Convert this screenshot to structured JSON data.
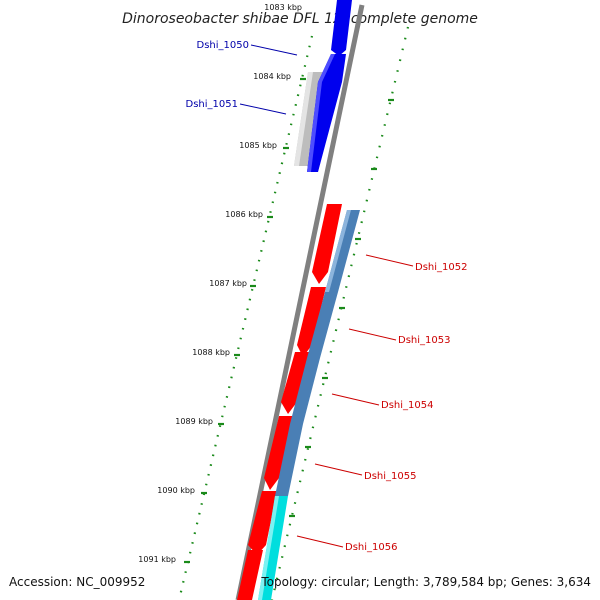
{
  "title": "Dinoroseobacter shibae DFL 12, complete genome",
  "accession": "Accession: NC_009952",
  "summary": "Topology: circular; Length: 3,789,584 bp; Genes: 3,634",
  "kbp_labels": [
    "1083 kbp",
    "1084 kbp",
    "1085 kbp",
    "1086 kbp",
    "1087 kbp",
    "1088 kbp",
    "1089 kbp",
    "1090 kbp",
    "1091 kbp"
  ],
  "gene_labels": [
    "Dshi_1050",
    "Dshi_1051",
    "Dshi_1052",
    "Dshi_1053",
    "Dshi_1054",
    "Dshi_1055",
    "Dshi_1056"
  ],
  "colors": {
    "forward_gene": "#0000ee",
    "forward_rna_like": "#bdbdbd",
    "reverse_gene": "#ff0000",
    "reverse_cds": "#4a7fb5",
    "reverse_other": "#00dede",
    "backbone": "#808080",
    "tick": "#1a8a1a",
    "label_blue": "#0000aa",
    "label_red": "#cc0000"
  }
}
